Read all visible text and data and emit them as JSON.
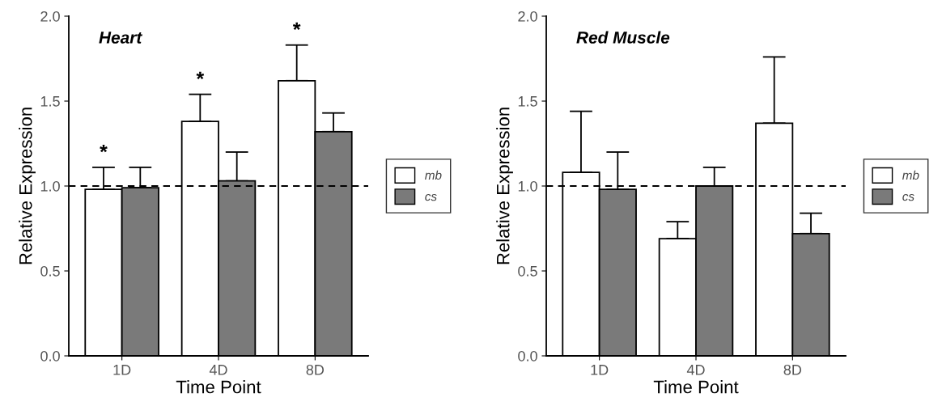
{
  "chart_data": [
    {
      "type": "bar",
      "title": "Heart",
      "xlabel": "Time Point",
      "ylabel": "Relative Expression",
      "categories": [
        "1D",
        "4D",
        "8D"
      ],
      "series": [
        {
          "name": "mb",
          "color": "#ffffff",
          "values": [
            0.98,
            1.38,
            1.62
          ],
          "errors": [
            [
              0.98,
              1.11
            ],
            [
              1.38,
              1.54
            ],
            [
              1.62,
              1.83
            ]
          ]
        },
        {
          "name": "cs",
          "color": "#7a7a7a",
          "values": [
            0.99,
            1.03,
            1.32
          ],
          "errors": [
            [
              0.99,
              1.11
            ],
            [
              1.03,
              1.2
            ],
            [
              1.32,
              1.43
            ]
          ]
        }
      ],
      "ylim": [
        0,
        2
      ],
      "yticks": [
        {
          "value": 0,
          "label": "0.0"
        },
        {
          "value": 0.5,
          "label": "0.5"
        },
        {
          "value": 1,
          "label": "1.0"
        },
        {
          "value": 1.5,
          "label": "1.5"
        },
        {
          "value": 2,
          "label": "2.0"
        }
      ],
      "ref_lines": [
        {
          "axis": "y",
          "value": 1,
          "line_style": "dashed",
          "color": "#000000"
        }
      ],
      "annotations": [
        "*",
        "*",
        "*"
      ],
      "legend": "right",
      "grid": false
    },
    {
      "type": "bar",
      "title": "Red Muscle",
      "xlabel": "Time Point",
      "ylabel": "Relative Expression",
      "categories": [
        "1D",
        "4D",
        "8D"
      ],
      "series": [
        {
          "name": "mb",
          "color": "#ffffff",
          "values": [
            1.08,
            0.69,
            1.37
          ],
          "errors": [
            [
              1.08,
              1.44
            ],
            [
              0.69,
              0.79
            ],
            [
              1.37,
              1.76
            ]
          ]
        },
        {
          "name": "cs",
          "color": "#7a7a7a",
          "values": [
            0.98,
            1.0,
            0.72
          ],
          "errors": [
            [
              0.98,
              1.2
            ],
            [
              1.0,
              1.11
            ],
            [
              0.72,
              0.84
            ]
          ]
        }
      ],
      "ylim": [
        0,
        2
      ],
      "yticks": [
        {
          "value": 0,
          "label": "0.0"
        },
        {
          "value": 0.5,
          "label": "0.5"
        },
        {
          "value": 1,
          "label": "1.0"
        },
        {
          "value": 1.5,
          "label": "1.5"
        },
        {
          "value": 2,
          "label": "2.0"
        }
      ],
      "ref_lines": [
        {
          "axis": "y",
          "value": 1,
          "line_style": "dashed",
          "color": "#000000"
        }
      ],
      "legend": "right",
      "grid": false
    }
  ]
}
